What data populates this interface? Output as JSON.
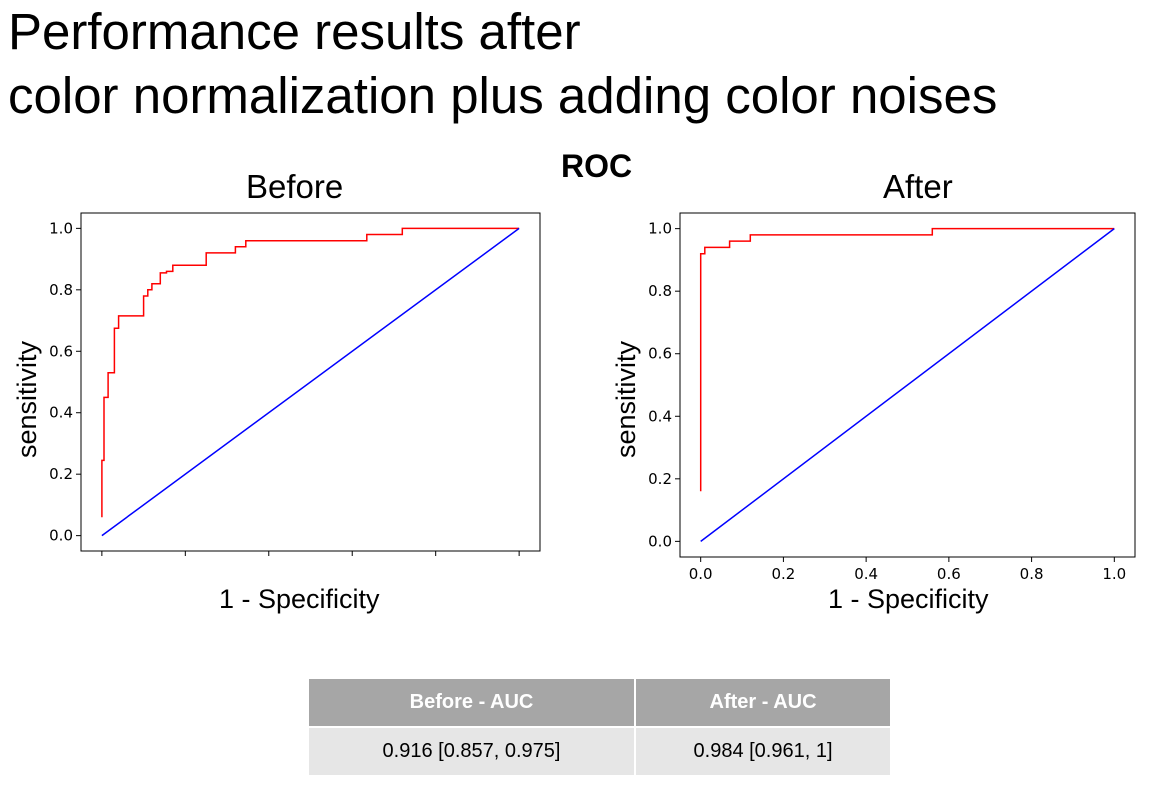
{
  "title_lines": [
    "Performance results after",
    "color normalization plus adding color noises"
  ],
  "roc_heading": "ROC",
  "chart_data": [
    {
      "type": "line",
      "title": "Before",
      "xlabel": "1 - Specificity",
      "ylabel": "sensitivity",
      "xlim": [
        -0.05,
        1.05
      ],
      "ylim": [
        -0.05,
        1.05
      ],
      "xticks": [
        "0.0",
        "0.2",
        "0.4",
        "0.6",
        "0.8",
        "1.0"
      ],
      "yticks": [
        "0.0",
        "0.2",
        "0.4",
        "0.6",
        "0.8",
        "1.0"
      ],
      "grid": false,
      "series": [
        {
          "color": "#ff0000",
          "x": [
            0,
            0,
            0.005,
            0.005,
            0.015,
            0.015,
            0.03,
            0.03,
            0.04,
            0.04,
            0.05,
            0.05,
            0.1,
            0.1,
            0.11,
            0.11,
            0.12,
            0.12,
            0.14,
            0.14,
            0.155,
            0.155,
            0.17,
            0.17,
            0.25,
            0.25,
            0.32,
            0.32,
            0.345,
            0.345,
            0.635,
            0.635,
            0.72,
            0.72,
            1.0
          ],
          "y": [
            0.06,
            0.245,
            0.245,
            0.45,
            0.45,
            0.53,
            0.53,
            0.675,
            0.675,
            0.715,
            0.715,
            0.715,
            0.715,
            0.78,
            0.78,
            0.8,
            0.8,
            0.82,
            0.82,
            0.855,
            0.855,
            0.86,
            0.86,
            0.88,
            0.88,
            0.92,
            0.92,
            0.94,
            0.94,
            0.96,
            0.96,
            0.98,
            0.98,
            1.0,
            1.0
          ]
        },
        {
          "color": "#0000ff",
          "x": [
            0,
            1
          ],
          "y": [
            0,
            1
          ]
        }
      ]
    },
    {
      "type": "line",
      "title": "After",
      "xlabel": "1 - Specificity",
      "ylabel": "sensitivity",
      "xlim": [
        -0.05,
        1.05
      ],
      "ylim": [
        -0.05,
        1.05
      ],
      "xticks": [
        "0.0",
        "0.2",
        "0.4",
        "0.6",
        "0.8",
        "1.0"
      ],
      "yticks": [
        "0.0",
        "0.2",
        "0.4",
        "0.6",
        "0.8",
        "1.0"
      ],
      "grid": false,
      "series": [
        {
          "color": "#ff0000",
          "x": [
            0,
            0,
            0.01,
            0.01,
            0.07,
            0.07,
            0.12,
            0.12,
            0.56,
            0.56,
            1.0
          ],
          "y": [
            0.16,
            0.92,
            0.92,
            0.94,
            0.94,
            0.96,
            0.96,
            0.98,
            0.98,
            1.0,
            1.0
          ]
        },
        {
          "color": "#0000ff",
          "x": [
            0,
            1
          ],
          "y": [
            0,
            1
          ]
        }
      ]
    }
  ],
  "auc_table": {
    "headers": [
      "Before - AUC",
      "After - AUC"
    ],
    "row": [
      "0.916 [0.857, 0.975]",
      "0.984 [0.961, 1]"
    ]
  }
}
